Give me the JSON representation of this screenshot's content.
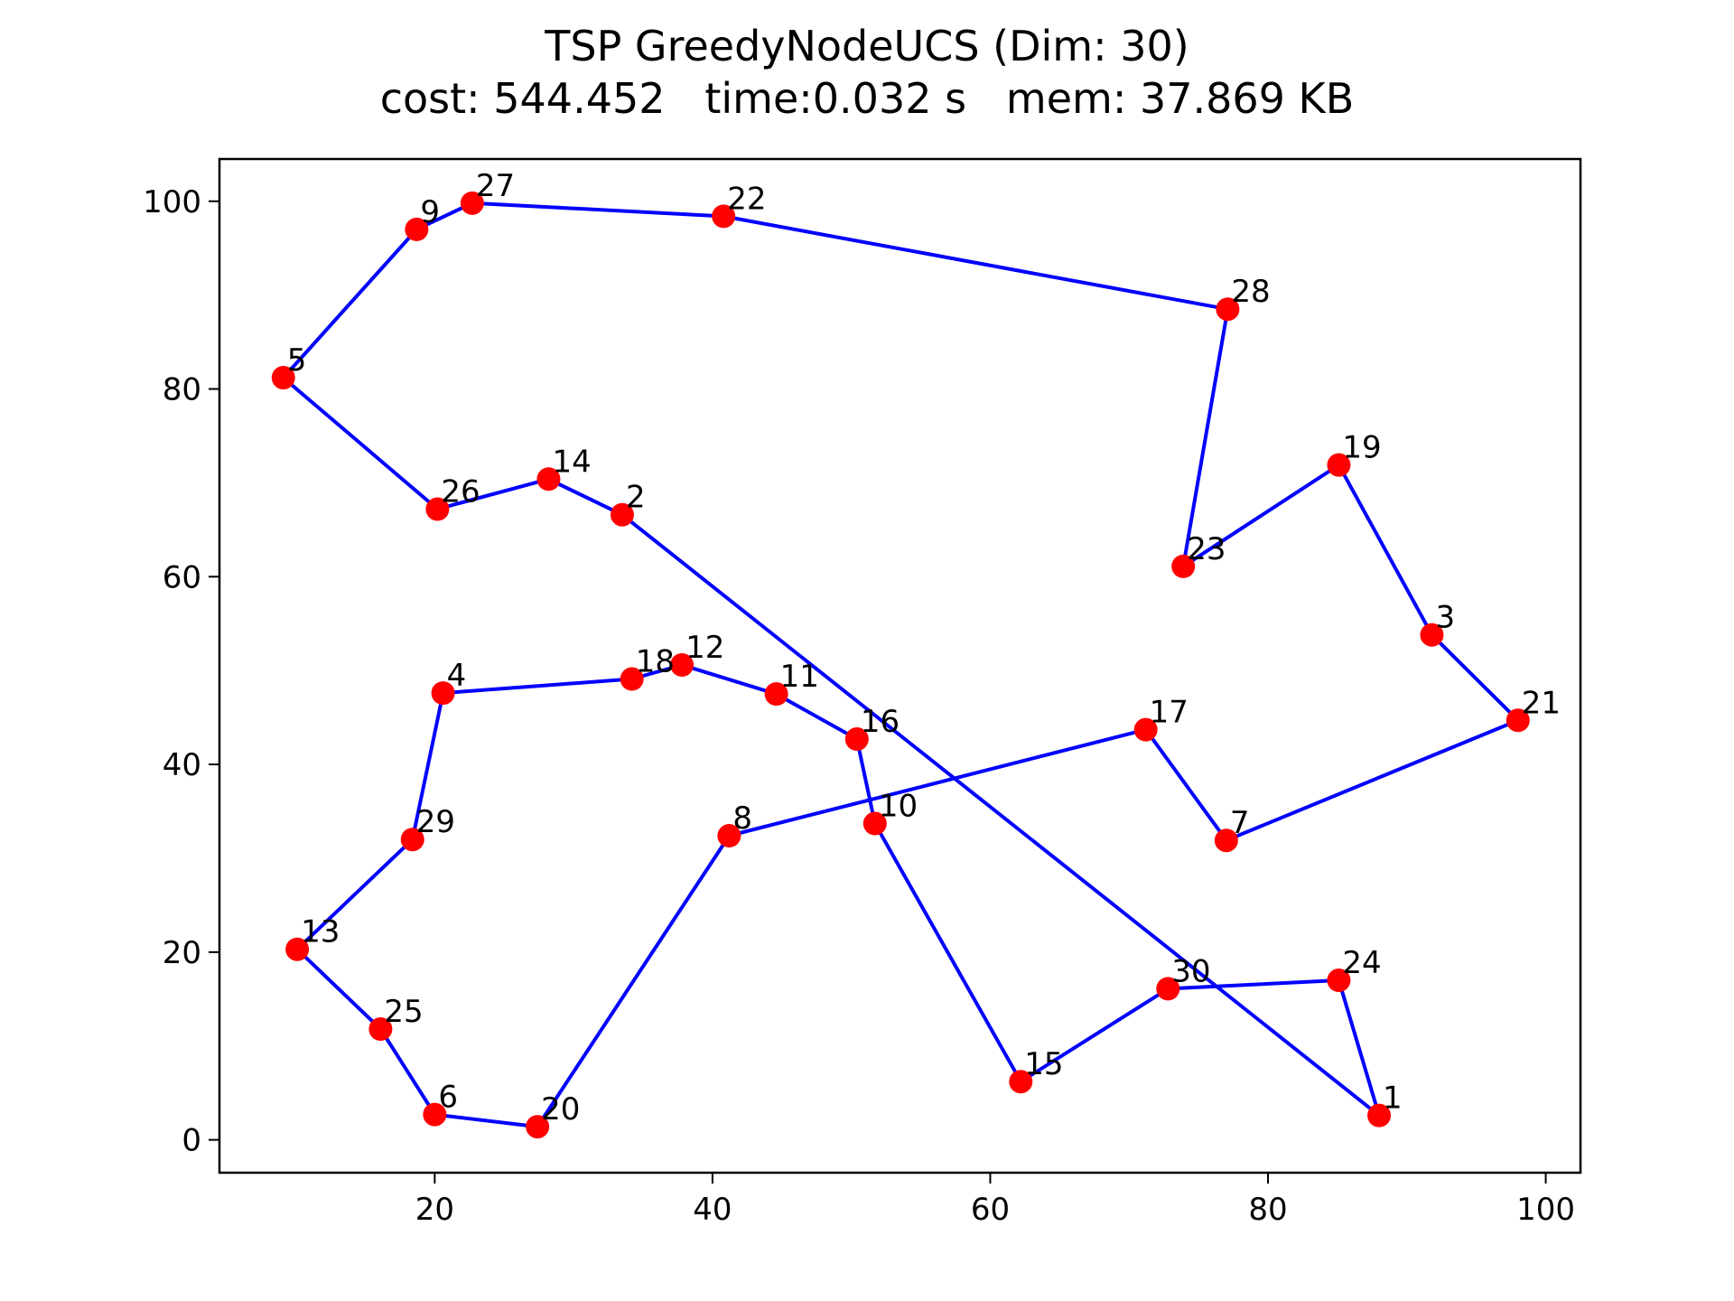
{
  "chart_data": {
    "type": "line",
    "title": "TSP GreedyNodeUCS (Dim: 30)",
    "subtitle": "cost: 544.452   time:0.032 s   mem: 37.869 KB",
    "xlabel": "",
    "ylabel": "",
    "xlim": [
      4.5,
      102.5
    ],
    "ylim": [
      -3.5,
      104.5
    ],
    "xticks": [
      20,
      40,
      60,
      80,
      100
    ],
    "yticks": [
      0,
      20,
      40,
      60,
      80,
      100
    ],
    "grid": false,
    "colors": {
      "node": "#ff0000",
      "route": "#0000ff"
    },
    "nodes": [
      {
        "id": "1",
        "x": 88.0,
        "y": 2.6
      },
      {
        "id": "2",
        "x": 33.5,
        "y": 66.6
      },
      {
        "id": "3",
        "x": 91.8,
        "y": 53.8
      },
      {
        "id": "4",
        "x": 20.6,
        "y": 47.6
      },
      {
        "id": "5",
        "x": 9.1,
        "y": 81.2
      },
      {
        "id": "6",
        "x": 20.0,
        "y": 2.7
      },
      {
        "id": "7",
        "x": 77.0,
        "y": 31.9
      },
      {
        "id": "8",
        "x": 41.2,
        "y": 32.4
      },
      {
        "id": "9",
        "x": 18.7,
        "y": 97.0
      },
      {
        "id": "10",
        "x": 51.7,
        "y": 33.7
      },
      {
        "id": "11",
        "x": 44.6,
        "y": 47.5
      },
      {
        "id": "12",
        "x": 37.8,
        "y": 50.6
      },
      {
        "id": "13",
        "x": 10.1,
        "y": 20.3
      },
      {
        "id": "14",
        "x": 28.2,
        "y": 70.4
      },
      {
        "id": "15",
        "x": 62.2,
        "y": 6.2
      },
      {
        "id": "16",
        "x": 50.4,
        "y": 42.7
      },
      {
        "id": "17",
        "x": 71.2,
        "y": 43.7
      },
      {
        "id": "18",
        "x": 34.2,
        "y": 49.1
      },
      {
        "id": "19",
        "x": 85.1,
        "y": 71.9
      },
      {
        "id": "20",
        "x": 27.4,
        "y": 1.4
      },
      {
        "id": "21",
        "x": 98.0,
        "y": 44.7
      },
      {
        "id": "22",
        "x": 40.8,
        "y": 98.4
      },
      {
        "id": "23",
        "x": 73.9,
        "y": 61.1
      },
      {
        "id": "24",
        "x": 85.1,
        "y": 17.0
      },
      {
        "id": "25",
        "x": 16.1,
        "y": 11.8
      },
      {
        "id": "26",
        "x": 20.2,
        "y": 67.2
      },
      {
        "id": "27",
        "x": 22.7,
        "y": 99.8
      },
      {
        "id": "28",
        "x": 77.1,
        "y": 88.5
      },
      {
        "id": "29",
        "x": 18.4,
        "y": 32.0
      },
      {
        "id": "30",
        "x": 72.8,
        "y": 16.1
      }
    ],
    "route": [
      "1",
      "24",
      "30",
      "15",
      "10",
      "16",
      "11",
      "12",
      "18",
      "4",
      "29",
      "13",
      "25",
      "6",
      "20",
      "8",
      "17",
      "7",
      "21",
      "3",
      "19",
      "23",
      "28",
      "22",
      "27",
      "9",
      "5",
      "26",
      "14",
      "2",
      "1"
    ]
  }
}
